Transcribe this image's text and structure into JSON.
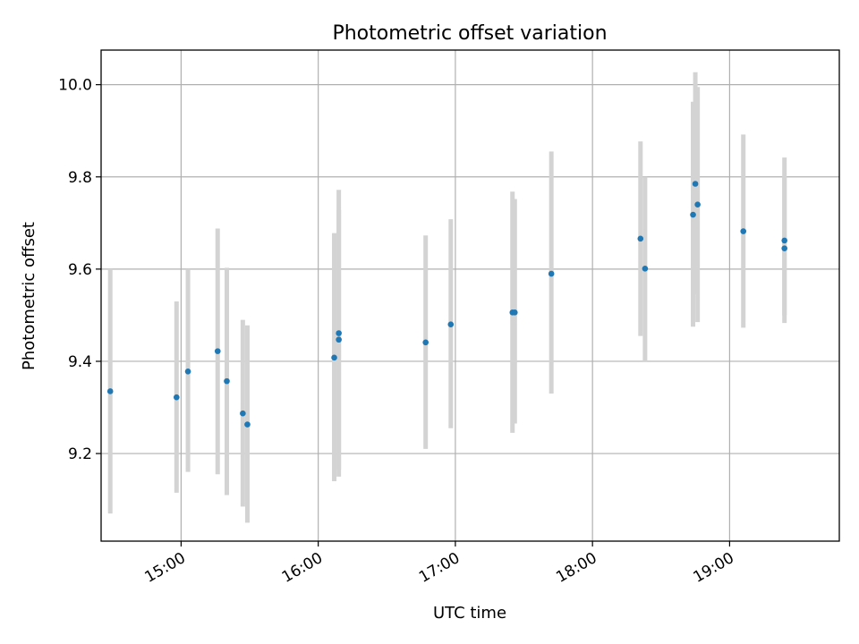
{
  "chart_data": {
    "type": "scatter",
    "title": "Photometric offset variation",
    "xlabel": "UTC time",
    "ylabel": "Photometric offset",
    "x_unit": "hours UTC",
    "xlim": [
      "14:25",
      "19:48"
    ],
    "ylim": [
      9.01,
      10.075
    ],
    "x_ticks": [
      {
        "value": "15:00",
        "label": "15:00"
      },
      {
        "value": "16:00",
        "label": "16:00"
      },
      {
        "value": "17:00",
        "label": "17:00"
      },
      {
        "value": "18:00",
        "label": "18:00"
      },
      {
        "value": "19:00",
        "label": "19:00"
      }
    ],
    "y_ticks": [
      {
        "value": 9.2,
        "label": "9.2"
      },
      {
        "value": 9.4,
        "label": "9.4"
      },
      {
        "value": 9.6,
        "label": "9.6"
      },
      {
        "value": 9.8,
        "label": "9.8"
      },
      {
        "value": 10.0,
        "label": "10.0"
      }
    ],
    "grid": true,
    "marker_color": "#1f77b4",
    "errorbar_color": "#d3d3d3",
    "points": [
      {
        "time": "14:29",
        "y": 9.335,
        "err_low": 9.07,
        "err_high": 9.6
      },
      {
        "time": "14:58",
        "y": 9.322,
        "err_low": 9.115,
        "err_high": 9.53
      },
      {
        "time": "15:03",
        "y": 9.378,
        "err_low": 9.16,
        "err_high": 9.6
      },
      {
        "time": "15:16",
        "y": 9.422,
        "err_low": 9.155,
        "err_high": 9.688
      },
      {
        "time": "15:20",
        "y": 9.357,
        "err_low": 9.11,
        "err_high": 9.603
      },
      {
        "time": "15:27",
        "y": 9.287,
        "err_low": 9.085,
        "err_high": 9.49
      },
      {
        "time": "15:29",
        "y": 9.263,
        "err_low": 9.05,
        "err_high": 9.478
      },
      {
        "time": "16:07",
        "y": 9.408,
        "err_low": 9.14,
        "err_high": 9.678
      },
      {
        "time": "16:09",
        "y": 9.461,
        "err_low": 9.15,
        "err_high": 9.772
      },
      {
        "time": "16:09",
        "y": 9.447,
        "err_low": 9.165,
        "err_high": 9.729
      },
      {
        "time": "16:47",
        "y": 9.441,
        "err_low": 9.21,
        "err_high": 9.673
      },
      {
        "time": "16:58",
        "y": 9.48,
        "err_low": 9.255,
        "err_high": 9.708
      },
      {
        "time": "17:25",
        "y": 9.506,
        "err_low": 9.245,
        "err_high": 9.768
      },
      {
        "time": "17:26",
        "y": 9.506,
        "err_low": 9.265,
        "err_high": 9.752
      },
      {
        "time": "17:42",
        "y": 9.59,
        "err_low": 9.33,
        "err_high": 9.855
      },
      {
        "time": "18:21",
        "y": 9.666,
        "err_low": 9.455,
        "err_high": 9.877
      },
      {
        "time": "18:23",
        "y": 9.601,
        "err_low": 9.4,
        "err_high": 9.8
      },
      {
        "time": "18:44",
        "y": 9.718,
        "err_low": 9.475,
        "err_high": 9.963
      },
      {
        "time": "18:45",
        "y": 9.785,
        "err_low": 9.545,
        "err_high": 10.027
      },
      {
        "time": "18:46",
        "y": 9.74,
        "err_low": 9.485,
        "err_high": 9.995
      },
      {
        "time": "19:06",
        "y": 9.682,
        "err_low": 9.473,
        "err_high": 9.892
      },
      {
        "time": "19:24",
        "y": 9.662,
        "err_low": 9.483,
        "err_high": 9.842
      },
      {
        "time": "19:24",
        "y": 9.645,
        "err_low": 9.5,
        "err_high": 9.8
      }
    ]
  }
}
